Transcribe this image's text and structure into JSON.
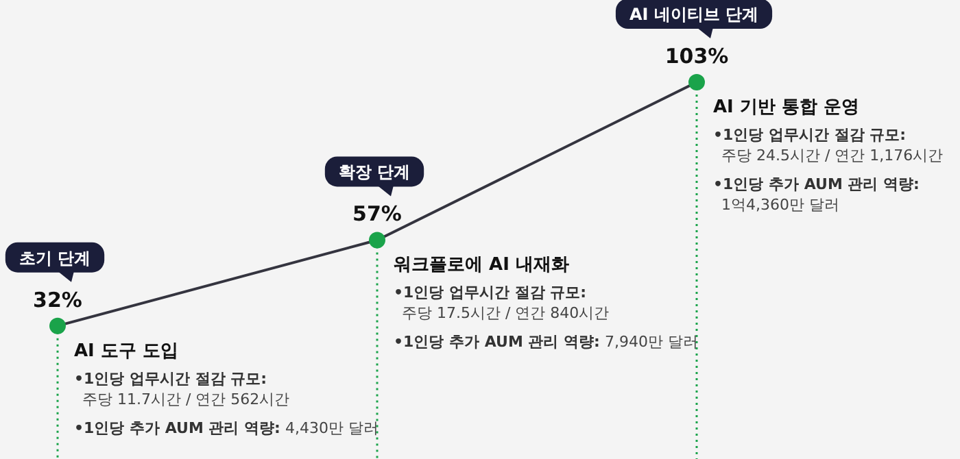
{
  "chart_data": {
    "type": "line",
    "categories": [
      null,
      null,
      null
    ],
    "series": [
      {
        "color": "#34343f",
        "colors": [
          "#1aa34a",
          "#1aa34a",
          "#1aa34a"
        ],
        "values": [
          32,
          57,
          103
        ],
        "value_labels": [
          "32%",
          "57%",
          "103%"
        ]
      }
    ],
    "marker": "circle",
    "line_style": "solid",
    "grid": false,
    "annotations": [
      "초기 단계",
      "AI 도구 도입",
      "•1인당 업무시간 절감 규모:\n주당 11.7시간 / 연간 562시간",
      "•1인당 추가 AUM 관리 역량: 4,430만 달러",
      "확장 단계",
      "워크플로에 AI 내재화",
      "•1인당 업무시간 절감 규모:\n주당 17.5시간 / 연간 840시간",
      "•1인당 추가 AUM 관리 역량: 7,940만 달러",
      "AI 네이티브 단계",
      "AI 기반 통합 운영",
      "•1인당 업무시간 절감 규모:\n주당 24.5시간 / 연간 1,176시간",
      "•1인당 추가 AUM 관리 역량:\n1억4,360만 달러"
    ]
  }
}
